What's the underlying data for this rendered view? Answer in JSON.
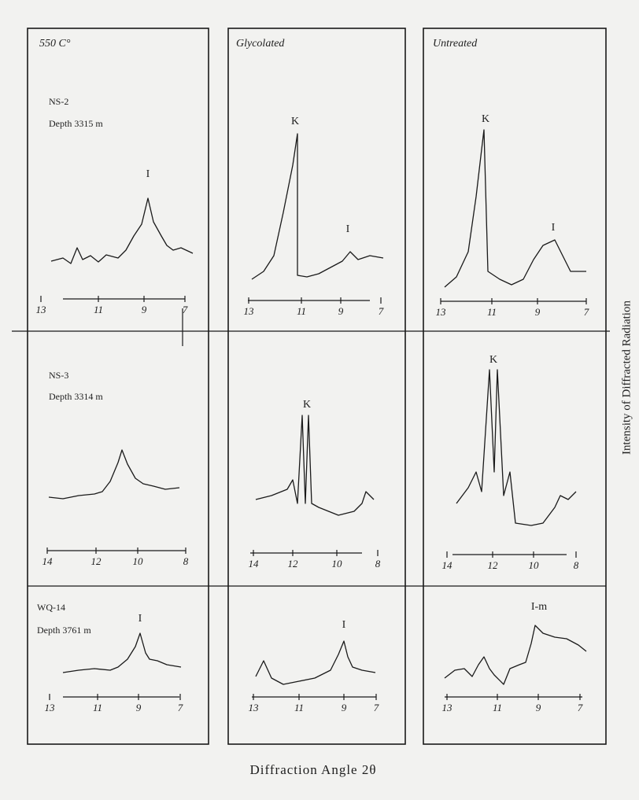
{
  "headers": [
    "550 C°",
    "Glycolated",
    "Untreated"
  ],
  "rows": [
    {
      "sample": "NS-2",
      "depth": "Depth 3315 m",
      "panels": [
        {
          "peaks": [
            "I"
          ],
          "ticks": [
            13,
            11,
            9,
            7
          ]
        },
        {
          "peaks": [
            "K",
            "I"
          ],
          "ticks": [
            13,
            11,
            9,
            7
          ]
        },
        {
          "peaks": [
            "K",
            "I"
          ],
          "ticks": [
            13,
            11,
            9,
            7
          ]
        }
      ]
    },
    {
      "sample": "NS-3",
      "depth": "Depth 3314 m",
      "panels": [
        {
          "peaks": [],
          "ticks": [
            14,
            12,
            10,
            8
          ]
        },
        {
          "peaks": [
            "K"
          ],
          "ticks": [
            14,
            12,
            10,
            8
          ]
        },
        {
          "peaks": [
            "K"
          ],
          "ticks": [
            14,
            12,
            10,
            8
          ]
        }
      ]
    },
    {
      "sample": "WQ-14",
      "depth": "Depth 3761 m",
      "panels": [
        {
          "peaks": [
            "I"
          ],
          "ticks": [
            13,
            11,
            9,
            7
          ]
        },
        {
          "peaks": [
            "I"
          ],
          "ticks": [
            13,
            11,
            9,
            7
          ]
        },
        {
          "peaks": [
            "I-m"
          ],
          "ticks": [
            13,
            11,
            9,
            7
          ]
        }
      ]
    }
  ],
  "x_axis_title": "Diffraction Angle 2θ",
  "y_axis_title": "Intensity of Diffracted Radiation"
}
